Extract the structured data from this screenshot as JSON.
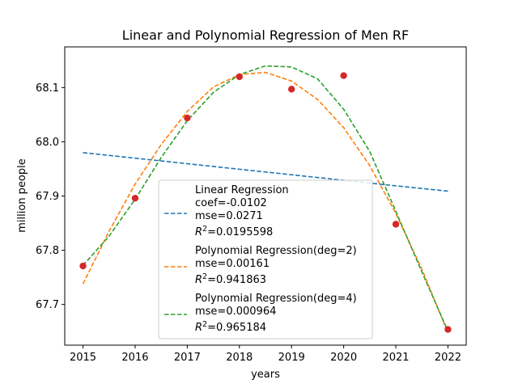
{
  "chart_data": {
    "type": "scatter",
    "title": "Linear and Polynomial Regression of Men RF",
    "xlabel": "years",
    "ylabel": "million people",
    "xlim": [
      2014.65,
      2022.35
    ],
    "ylim": [
      67.625,
      68.175
    ],
    "x_ticks": [
      "2015",
      "2016",
      "2017",
      "2018",
      "2019",
      "2020",
      "2021",
      "2022"
    ],
    "y_ticks": [
      "67.7",
      "67.8",
      "67.9",
      "68.0",
      "68.1"
    ],
    "grid": false,
    "legend_position": "lower-center",
    "points": {
      "color": "#d62728",
      "x": [
        2015,
        2016,
        2017,
        2018,
        2019,
        2020,
        2021,
        2022
      ],
      "y": [
        67.771,
        67.896,
        68.044,
        68.12,
        68.097,
        68.122,
        67.848,
        67.654
      ]
    },
    "series": [
      {
        "color": "#1f77b4",
        "legend_lines": [
          "Linear Regression",
          "coef=-0.0102",
          "mse=0.0271",
          "R",
          "2",
          "=0.0195598"
        ],
        "x": [
          2015,
          2016,
          2017,
          2018,
          2019,
          2020,
          2021,
          2022
        ],
        "y": [
          67.98,
          67.9698,
          67.9596,
          67.9494,
          67.9392,
          67.929,
          67.9188,
          67.909
        ]
      },
      {
        "color": "#ff7f0e",
        "legend_lines": [
          "Polynomial Regression(deg=2)",
          "mse=0.00161",
          "R",
          "2",
          "=0.941863"
        ],
        "x": [
          2015,
          2015.5,
          2016,
          2016.5,
          2017,
          2017.5,
          2018,
          2018.5,
          2019,
          2019.5,
          2020,
          2020.5,
          2021,
          2021.5,
          2022
        ],
        "y": [
          67.738,
          67.835,
          67.922,
          67.995,
          68.056,
          68.101,
          68.124,
          68.128,
          68.112,
          68.078,
          68.026,
          67.956,
          67.868,
          67.765,
          67.648
        ]
      },
      {
        "color": "#2ca02c",
        "legend_lines": [
          "Polynomial Regression(deg=4)",
          "mse=0.000964",
          "R",
          "2",
          "=0.965184"
        ],
        "x": [
          2015,
          2015.5,
          2016,
          2016.5,
          2017,
          2017.5,
          2018,
          2018.5,
          2019,
          2019.5,
          2020,
          2020.5,
          2021,
          2021.5,
          2022
        ],
        "y": [
          67.772,
          67.826,
          67.894,
          67.971,
          68.039,
          68.091,
          68.124,
          68.14,
          68.138,
          68.116,
          68.06,
          67.982,
          67.872,
          67.76,
          67.651
        ]
      }
    ]
  }
}
